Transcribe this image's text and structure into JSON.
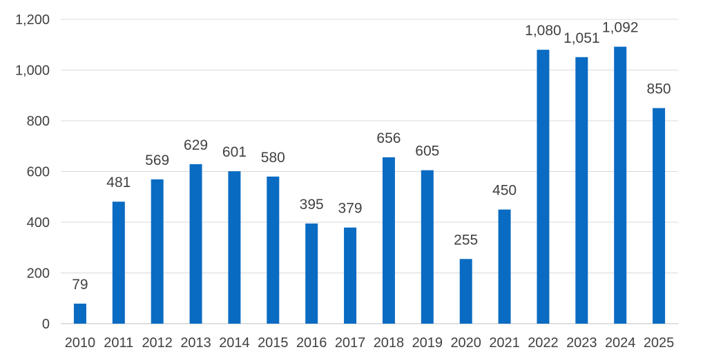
{
  "chart_data": {
    "type": "bar",
    "categories": [
      "2010",
      "2011",
      "2012",
      "2013",
      "2014",
      "2015",
      "2016",
      "2017",
      "2018",
      "2019",
      "2020",
      "2021",
      "2022",
      "2023",
      "2024",
      "2025"
    ],
    "values": [
      79,
      481,
      569,
      629,
      601,
      580,
      395,
      379,
      656,
      605,
      255,
      450,
      1080,
      1051,
      1092,
      850
    ],
    "data_labels": [
      "79",
      "481",
      "569",
      "629",
      "601",
      "580",
      "395",
      "379",
      "656",
      "605",
      "255",
      "450",
      "1,080",
      "1,051",
      "1,092",
      "850"
    ],
    "yticks": [
      0,
      200,
      400,
      600,
      800,
      1000,
      1200
    ],
    "ytick_labels": [
      "0",
      "200",
      "400",
      "600",
      "800",
      "1,000",
      "1,200"
    ],
    "ylim": [
      0,
      1200
    ],
    "grid": true,
    "legend": "none",
    "title": "",
    "xlabel": "",
    "ylabel": "",
    "colors": {
      "bar": "#0a6bc2",
      "grid": "#d9d9d9",
      "text": "#404040"
    }
  }
}
